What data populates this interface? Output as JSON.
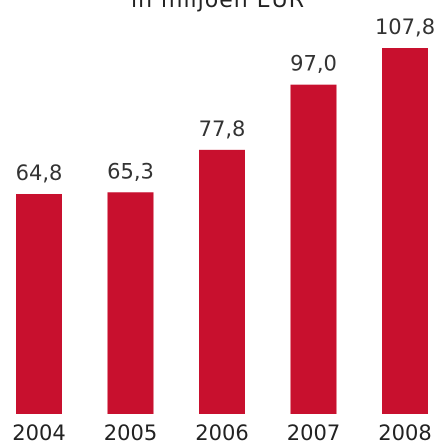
{
  "chart_data": {
    "type": "bar",
    "subtitle": "in miljoen EUR",
    "categories": [
      "2004",
      "2005",
      "2006",
      "2007",
      "2008"
    ],
    "values": [
      64.8,
      65.3,
      77.8,
      97.0,
      107.8
    ],
    "value_labels": [
      "64,8",
      "65,3",
      "77,8",
      "97,0",
      "107,8"
    ],
    "ylim": [
      0,
      107.8
    ],
    "bar_color": "#c8102e",
    "grid": false,
    "legend": "none"
  }
}
